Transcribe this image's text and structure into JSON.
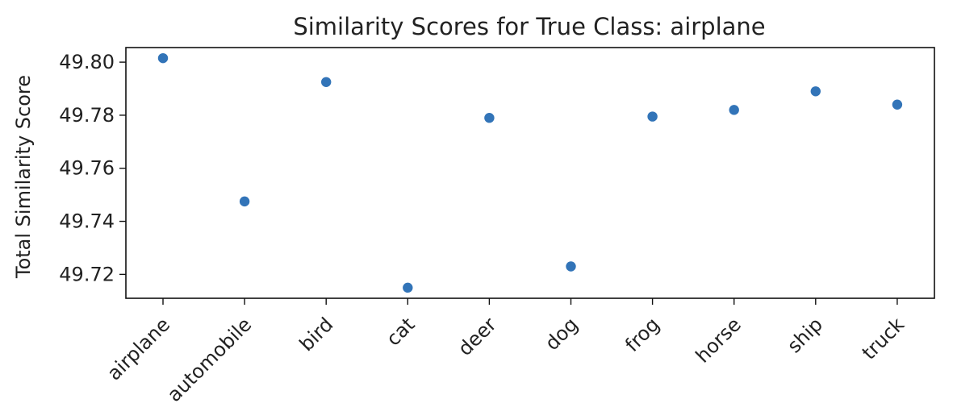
{
  "chart_data": {
    "type": "scatter",
    "title": "Similarity Scores for True Class: airplane",
    "xlabel": "",
    "ylabel": "Total Similarity Score",
    "categories": [
      "airplane",
      "automobile",
      "bird",
      "cat",
      "deer",
      "dog",
      "frog",
      "horse",
      "ship",
      "truck"
    ],
    "values": [
      49.8015,
      49.7475,
      49.7925,
      49.715,
      49.779,
      49.723,
      49.7795,
      49.782,
      49.789,
      49.784
    ],
    "ylim": [
      49.711,
      49.8055
    ],
    "yticks": [
      49.72,
      49.74,
      49.76,
      49.78,
      49.8
    ],
    "ytick_labels": [
      "49.72",
      "49.74",
      "49.76",
      "49.78",
      "49.80"
    ],
    "marker_color": "#3274b8",
    "grid": false,
    "legend": false
  }
}
